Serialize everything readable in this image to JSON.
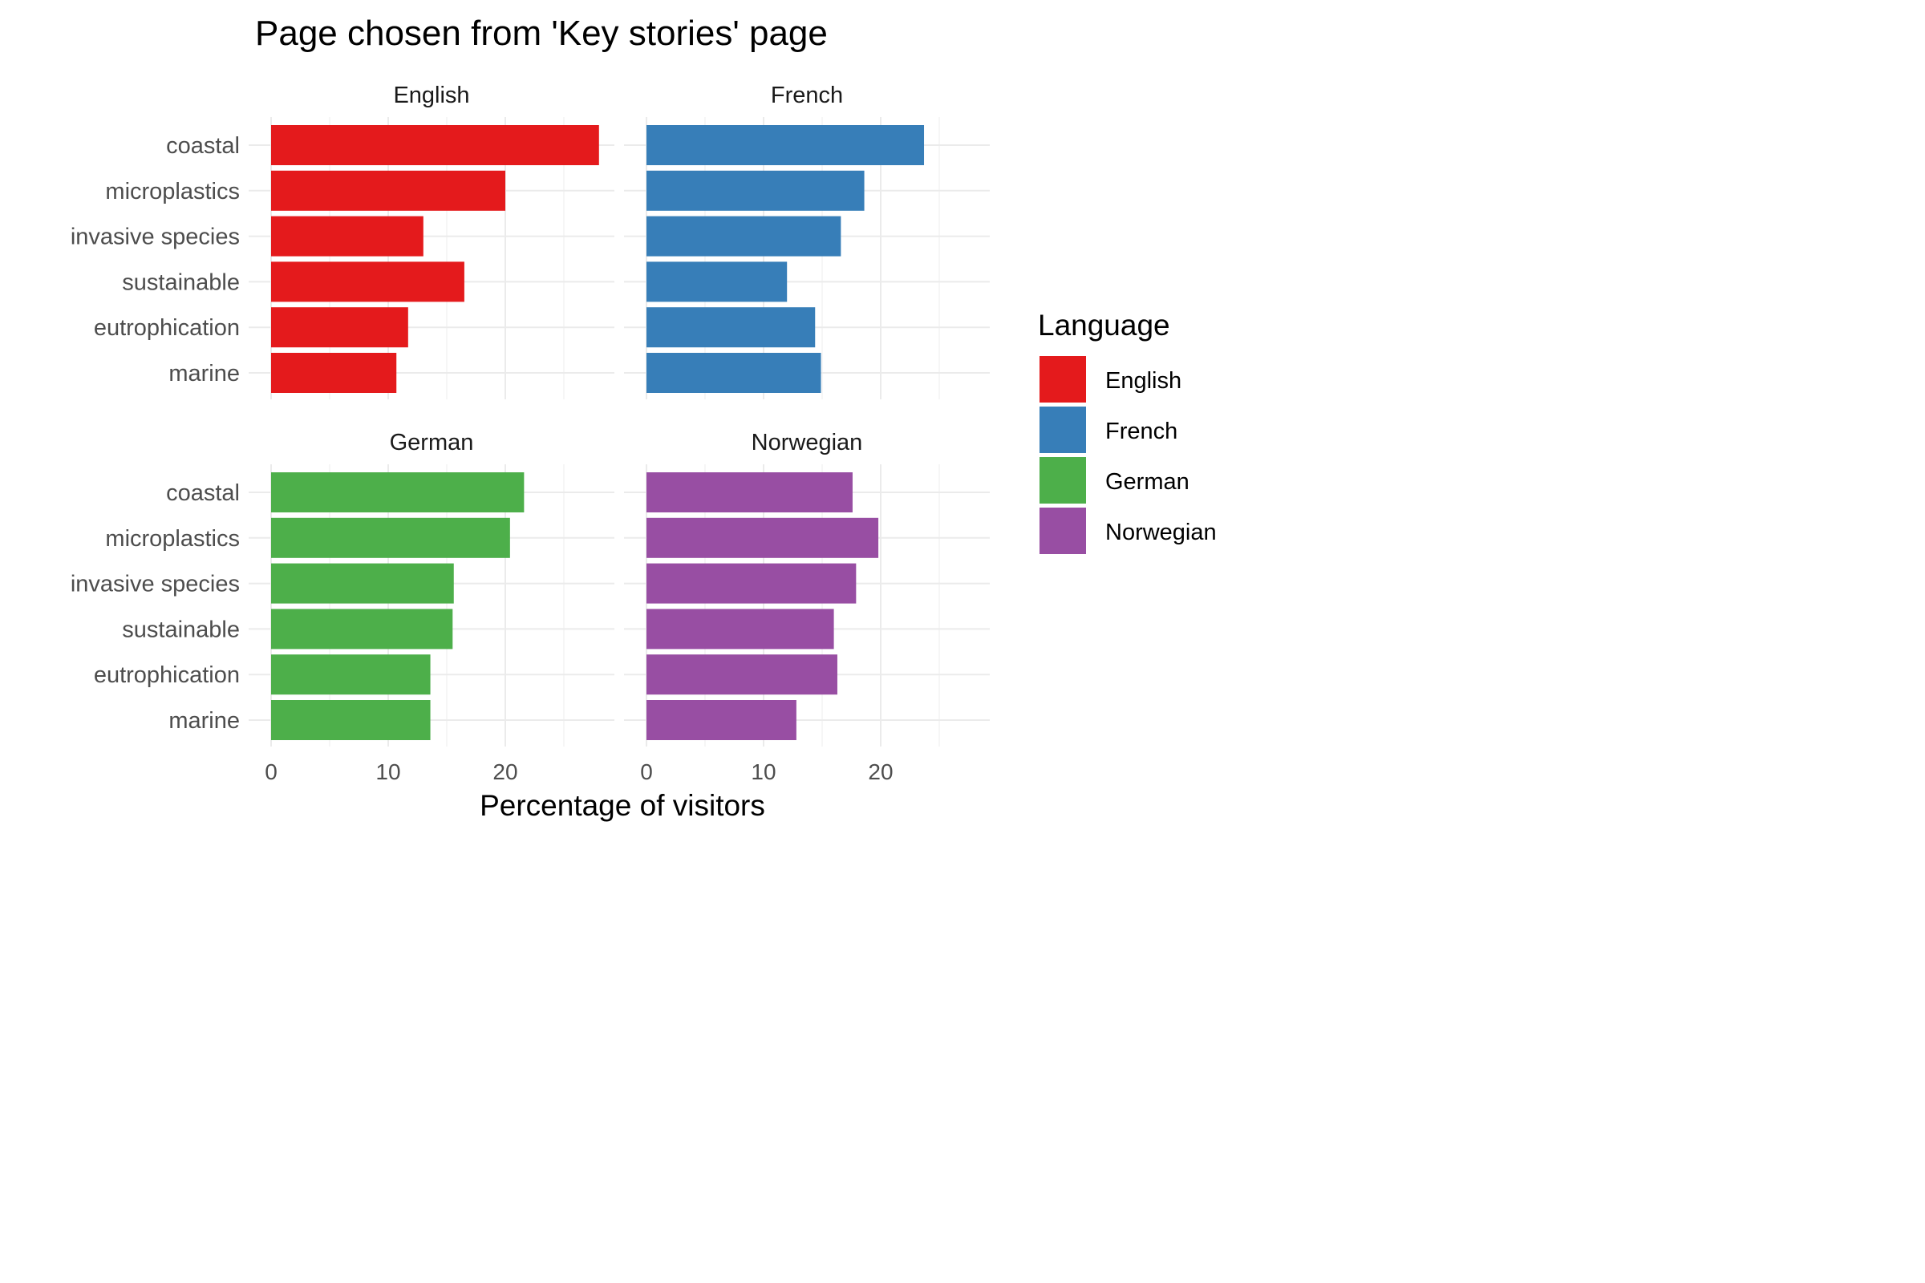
{
  "chart_data": {
    "type": "bar",
    "orientation": "horizontal",
    "title": "Page chosen from 'Key stories' page",
    "xlabel": "Percentage of visitors",
    "ylabel": "",
    "xlim": [
      0,
      28
    ],
    "x_ticks": [
      "0",
      "10",
      "20"
    ],
    "x_tick_values": [
      0,
      10,
      20
    ],
    "grid": true,
    "categories": [
      "coastal",
      "microplastics",
      "invasive species",
      "sustainable",
      "eutrophication",
      "marine"
    ],
    "legend": {
      "title": "Language",
      "placement": "right",
      "entries": [
        "English",
        "French",
        "German",
        "Norwegian"
      ]
    },
    "facets": [
      {
        "name": "English",
        "color": "#E41A1C",
        "values": [
          28.0,
          20.0,
          13.0,
          16.5,
          11.7,
          10.7
        ]
      },
      {
        "name": "French",
        "color": "#377EB8",
        "values": [
          23.7,
          18.6,
          16.6,
          12.0,
          14.4,
          14.9
        ]
      },
      {
        "name": "German",
        "color": "#4DAF4A",
        "values": [
          21.6,
          20.4,
          15.6,
          15.5,
          13.6,
          13.6
        ]
      },
      {
        "name": "Norwegian",
        "color": "#984EA3",
        "values": [
          17.6,
          19.8,
          17.9,
          16.0,
          16.3,
          12.8
        ]
      }
    ]
  }
}
